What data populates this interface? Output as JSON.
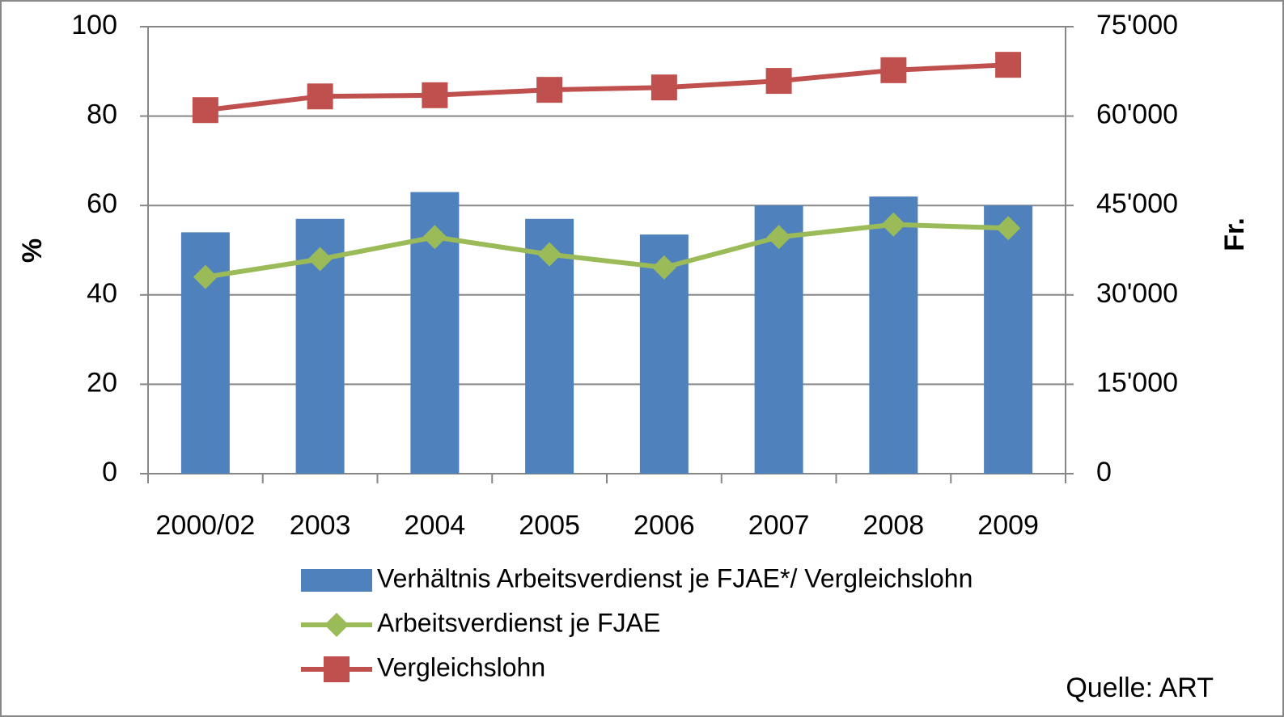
{
  "chart_data": {
    "type": "bar-line",
    "categories": [
      "2000/02",
      "2003",
      "2004",
      "2005",
      "2006",
      "2007",
      "2008",
      "2009"
    ],
    "series": [
      {
        "name": "Verhältnis Arbeitsverdienst je FJAE*/ Vergleichslohn",
        "type": "bar",
        "color": "#4f81bd",
        "values": [
          54,
          57,
          63,
          57,
          53.5,
          60,
          62,
          60
        ]
      },
      {
        "name": "Arbeitsverdienst je FJAE",
        "type": "line",
        "marker": "diamond",
        "axis": "y2",
        "color": "#9bbb59",
        "values": [
          33000,
          36000,
          39700,
          36800,
          34600,
          39700,
          41800,
          41200
        ]
      },
      {
        "name": "Vergleichslohn",
        "type": "line",
        "marker": "square",
        "axis": "y2",
        "color": "#c0504d",
        "values": [
          61000,
          63300,
          63500,
          64400,
          64800,
          65900,
          67700,
          68600
        ]
      }
    ],
    "ylabel": "%",
    "y2label": "Fr.",
    "ylim": [
      0,
      100
    ],
    "yticks": [
      0,
      20,
      40,
      60,
      80,
      100
    ],
    "y2lim": [
      0,
      75000
    ],
    "y2ticks": [
      0,
      {
        "value": 15000,
        "label": "15'000"
      },
      {
        "value": 30000,
        "label": "30'000"
      },
      {
        "value": 45000,
        "label": "45'000"
      },
      {
        "value": 60000,
        "label": "60'000"
      },
      {
        "value": 75000,
        "label": "75'000"
      }
    ],
    "grid": true,
    "legend": "bottom",
    "annotation": "Quelle: ART"
  }
}
